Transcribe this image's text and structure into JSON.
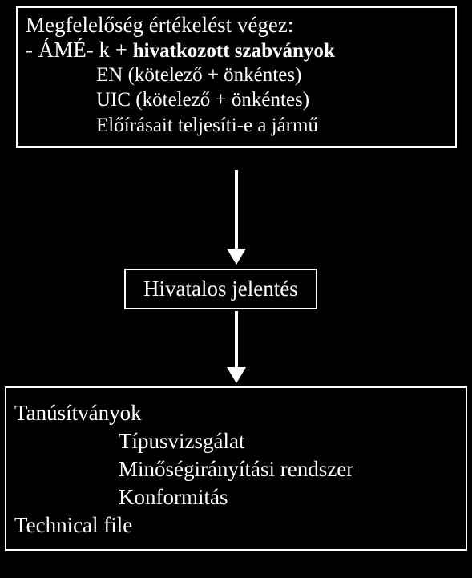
{
  "diagram": {
    "type": "flowchart",
    "background_color": "#000000",
    "border_color": "#ffffff",
    "text_color": "#ffffff",
    "font_family": "Times New Roman",
    "arrow_color": "#ffffff",
    "nodes": {
      "top": {
        "line1": "Megfelelőség értékelést végez:",
        "line2_prefix": "- ÁMÉ- k + ",
        "line2_bold": "hivatkozott szabványok",
        "sub1": "EN   (kötelező + önkéntes)",
        "sub2": "UIC    (kötelező + önkéntes)",
        "sub3": "Előírásait teljesíti-e a jármű"
      },
      "middle": {
        "label": "Hivatalos jelentés"
      },
      "bottom": {
        "line1": "Tanúsítványok",
        "sub1": "Típusvizsgálat",
        "sub2": "Minőségirányítási rendszer",
        "sub3": "Konformitás",
        "line2": "Technical file"
      }
    }
  }
}
